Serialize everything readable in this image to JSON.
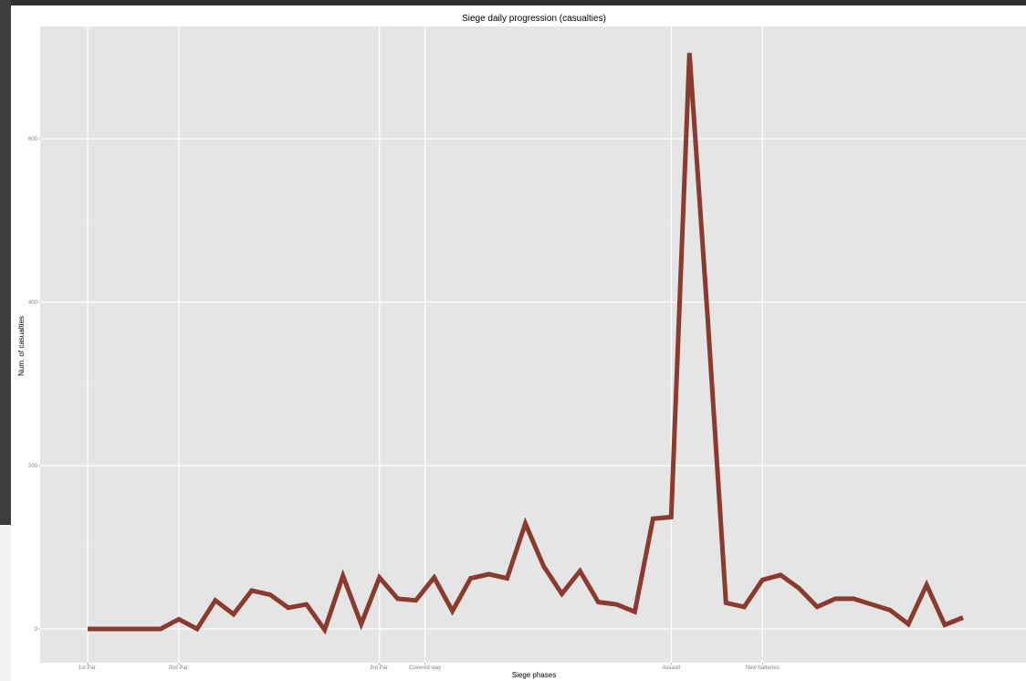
{
  "chart_data": {
    "type": "line",
    "title": "Siege daily progression (casualties)",
    "xlabel": "Siege phases",
    "ylabel": "Num. of casualties",
    "ylim": [
      -40,
      710
    ],
    "yticks": [
      0,
      200,
      400,
      600
    ],
    "grid": true,
    "line_color": "#8b3a2e",
    "panel_bg": "#e5e5e5",
    "x_phase_ticks": [
      {
        "x": 1,
        "label": "1st Par."
      },
      {
        "x": 6,
        "label": "2nd Par."
      },
      {
        "x": 17,
        "label": "3rd Par."
      },
      {
        "x": 19.5,
        "label": "Covered way"
      },
      {
        "x": 33,
        "label": "Assault"
      },
      {
        "x": 38,
        "label": "New batteries"
      }
    ],
    "x": [
      1,
      2,
      3,
      4,
      5,
      6,
      7,
      8,
      9,
      10,
      11,
      12,
      13,
      14,
      15,
      16,
      17,
      18,
      19,
      20,
      21,
      22,
      23,
      24,
      25,
      26,
      27,
      28,
      29,
      30,
      31,
      32,
      33,
      34,
      35,
      36,
      37,
      38,
      39,
      40,
      41,
      42,
      43,
      44,
      45,
      46,
      47,
      48,
      49,
      50
    ],
    "values": [
      0,
      0,
      0,
      0,
      0,
      12,
      0,
      35,
      18,
      47,
      42,
      26,
      30,
      -1,
      65,
      6,
      63,
      37,
      35,
      63,
      22,
      62,
      67,
      62,
      129,
      77,
      43,
      71,
      33,
      30,
      21,
      135,
      137,
      705,
      380,
      32,
      27,
      60,
      66,
      50,
      27,
      37,
      37,
      30,
      23,
      6,
      54,
      5,
      14,
      null
    ]
  }
}
